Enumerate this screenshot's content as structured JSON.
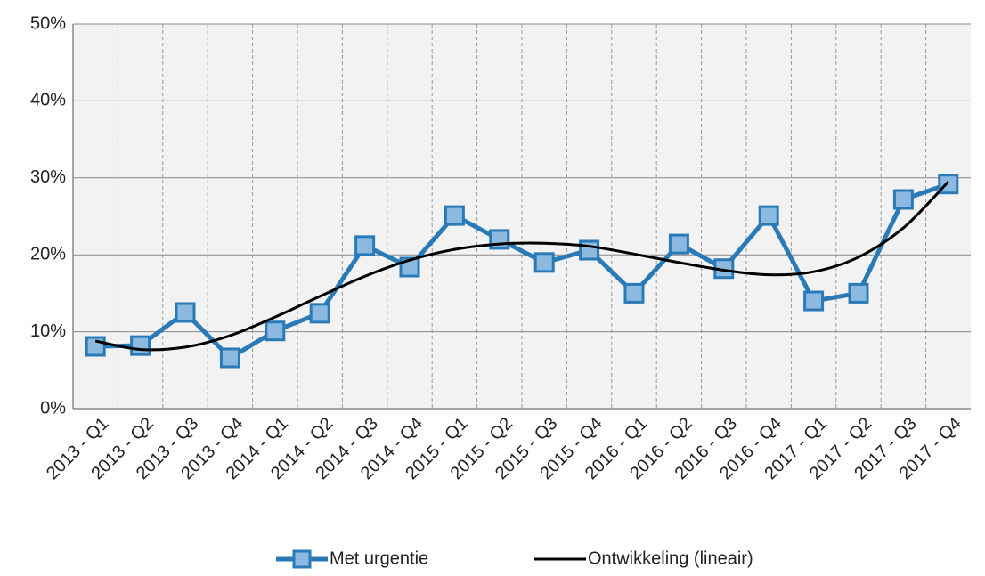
{
  "chart_data": {
    "type": "line",
    "categories": [
      "2013 - Q1",
      "2013 - Q2",
      "2013 - Q3",
      "2013 - Q4",
      "2014 - Q1",
      "2014 - Q2",
      "2014 - Q3",
      "2014 - Q4",
      "2015 - Q1",
      "2015 - Q2",
      "2015 - Q3",
      "2015 - Q4",
      "2016 - Q1",
      "2016 - Q2",
      "2016 - Q3",
      "2016 - Q4",
      "2017 - Q1",
      "2017 - Q2",
      "2017 - Q3",
      "2017 - Q4"
    ],
    "series": [
      {
        "name": "Met urgentie",
        "color": "#2a7ab8",
        "marker": "square",
        "values": [
          8.1,
          8.2,
          12.5,
          6.6,
          10.1,
          12.4,
          21.2,
          18.4,
          25.1,
          22.0,
          19.0,
          20.6,
          15.0,
          21.4,
          18.2,
          25.1,
          14.0,
          15.0,
          27.2,
          29.2
        ]
      },
      {
        "name": "Ontwikkeling (lineair)",
        "color": "#000000",
        "smooth": true,
        "values": [
          8.8,
          7.7,
          8.0,
          9.5,
          11.9,
          14.6,
          17.2,
          19.3,
          20.7,
          21.4,
          21.5,
          21.1,
          20.1,
          19.0,
          18.0,
          17.4,
          17.8,
          19.7,
          23.5,
          29.5
        ]
      }
    ],
    "ylim": [
      0,
      50
    ],
    "yticks": [
      {
        "value": 0,
        "label": "0%"
      },
      {
        "value": 10,
        "label": "10%"
      },
      {
        "value": 20,
        "label": "20%"
      },
      {
        "value": 30,
        "label": "30%"
      },
      {
        "value": 40,
        "label": "40%"
      },
      {
        "value": 50,
        "label": "50%"
      }
    ],
    "grid": true,
    "legend": "bottom"
  }
}
